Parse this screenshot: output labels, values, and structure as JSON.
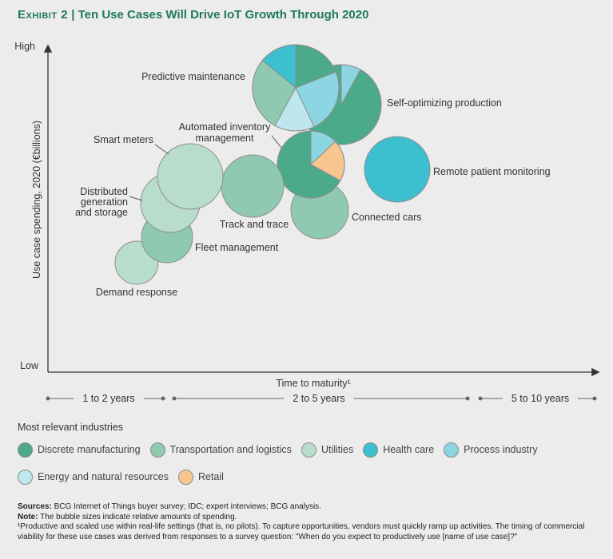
{
  "title": {
    "prefix": "Exhibit 2",
    "separator": " | ",
    "text": "Ten Use Cases Will Drive IoT Growth Through 2020"
  },
  "colors": {
    "discrete_manufacturing": "#4aaa8a",
    "transportation_logistics": "#8fc9b0",
    "utilities": "#b9ddcb",
    "health_care": "#3cbfcf",
    "process_industry": "#8cd5e3",
    "energy_natural_resources": "#bde6ef",
    "retail": "#f7c68e",
    "title": "#1f7a55"
  },
  "chart_data": {
    "type": "bubble",
    "title": "Ten Use Cases Will Drive IoT Growth Through 2020",
    "xlabel": "Time to maturity¹",
    "ylabel": "Use case spending, 2020 (€billions)",
    "y_ticks": {
      "high": "High",
      "low": "Low"
    },
    "x_ranges": [
      {
        "label": "1 to 2 years"
      },
      {
        "label": "2 to 5 years"
      },
      {
        "label": "5 to 10 years"
      }
    ],
    "bubbles": [
      {
        "name": "Predictive maintenance",
        "segments": [
          {
            "industry": "discrete_manufacturing",
            "share": 0.19
          },
          {
            "industry": "process_industry",
            "share": 0.24
          },
          {
            "industry": "energy_natural_resources",
            "share": 0.15
          },
          {
            "industry": "transportation_logistics",
            "share": 0.28
          },
          {
            "industry": "health_care",
            "share": 0.14
          }
        ]
      },
      {
        "name": "Self-optimizing production",
        "segments": [
          {
            "industry": "process_industry",
            "share": 0.08
          },
          {
            "industry": "discrete_manufacturing",
            "share": 0.92
          }
        ]
      },
      {
        "name": "Automated inventory management",
        "segments": [
          {
            "industry": "process_industry",
            "share": 0.13
          },
          {
            "industry": "retail",
            "share": 0.2
          },
          {
            "industry": "discrete_manufacturing",
            "share": 0.67
          }
        ]
      },
      {
        "name": "Remote patient monitoring",
        "segments": [
          {
            "industry": "health_care",
            "share": 1
          }
        ]
      },
      {
        "name": "Smart meters",
        "segments": [
          {
            "industry": "utilities",
            "share": 1
          }
        ]
      },
      {
        "name": "Track and trace",
        "segments": [
          {
            "industry": "transportation_logistics",
            "share": 1
          }
        ]
      },
      {
        "name": "Connected cars",
        "segments": [
          {
            "industry": "transportation_logistics",
            "share": 1
          }
        ]
      },
      {
        "name": "Distributed generation and storage",
        "segments": [
          {
            "industry": "utilities",
            "share": 1
          }
        ]
      },
      {
        "name": "Fleet management",
        "segments": [
          {
            "industry": "transportation_logistics",
            "share": 1
          }
        ]
      },
      {
        "name": "Demand response",
        "segments": [
          {
            "industry": "utilities",
            "share": 1
          }
        ]
      }
    ]
  },
  "legend": {
    "title": "Most relevant industries",
    "items": [
      {
        "key": "discrete_manufacturing",
        "label": "Discrete manufacturing"
      },
      {
        "key": "transportation_logistics",
        "label": "Transportation and logistics"
      },
      {
        "key": "utilities",
        "label": "Utilities"
      },
      {
        "key": "health_care",
        "label": "Health care"
      },
      {
        "key": "process_industry",
        "label": "Process industry"
      },
      {
        "key": "energy_natural_resources",
        "label": "Energy and natural resources"
      },
      {
        "key": "retail",
        "label": "Retail"
      }
    ]
  },
  "footnotes": {
    "sources_label": "Sources:",
    "sources": " BCG Internet of Things buyer survey; IDC; expert interviews; BCG analysis.",
    "note_label": "Note:",
    "note": " The bubble sizes indicate relative amounts of spending.",
    "footnote1": "¹Productive and scaled use within real-life settings (that is, no pilots). To capture opportunities, vendors must quickly ramp up activities. The timing of commercial viability for these use cases was derived from responses to a survey question: \"When do you expect to productively use [name of use case]?\""
  }
}
